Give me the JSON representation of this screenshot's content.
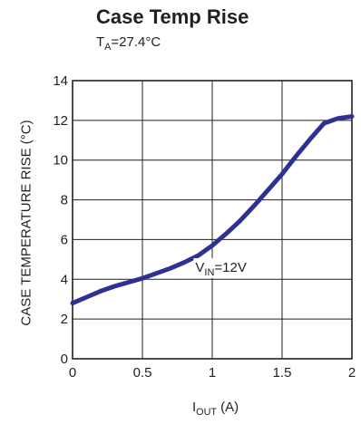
{
  "chart_data": {
    "type": "line",
    "title": "Case Temp Rise",
    "subtitle": {
      "prefix": "T",
      "sub": "A",
      "suffix": "=27.4°C"
    },
    "xlabel": {
      "prefix": "I",
      "sub": "OUT",
      "suffix": " (A)"
    },
    "ylabel": "CASE TEMPERATURE RISE (°C)",
    "xlim": [
      0,
      2
    ],
    "ylim": [
      0,
      14
    ],
    "xticks": [
      0,
      0.5,
      1,
      1.5,
      2
    ],
    "xtick_labels": [
      "0",
      "0.5",
      "1",
      "1.5",
      "2"
    ],
    "yticks": [
      0,
      2,
      4,
      6,
      8,
      10,
      12,
      14
    ],
    "ytick_labels": [
      "0",
      "2",
      "4",
      "6",
      "8",
      "10",
      "12",
      "14"
    ],
    "grid": true,
    "series": [
      {
        "color": "#2e3192",
        "x": [
          0,
          0.1,
          0.2,
          0.3,
          0.4,
          0.5,
          0.6,
          0.7,
          0.8,
          0.9,
          1.0,
          1.1,
          1.2,
          1.3,
          1.4,
          1.5,
          1.6,
          1.7,
          1.8,
          1.9,
          2.0
        ],
        "y": [
          2.8,
          3.1,
          3.4,
          3.65,
          3.85,
          4.05,
          4.3,
          4.55,
          4.85,
          5.2,
          5.7,
          6.3,
          6.95,
          7.7,
          8.5,
          9.3,
          10.2,
          11.05,
          11.85,
          12.1,
          12.2
        ]
      }
    ],
    "annotation": {
      "prefix": "V",
      "sub": "IN",
      "suffix": "=12V",
      "x": 0.97,
      "y": 5.2
    }
  }
}
